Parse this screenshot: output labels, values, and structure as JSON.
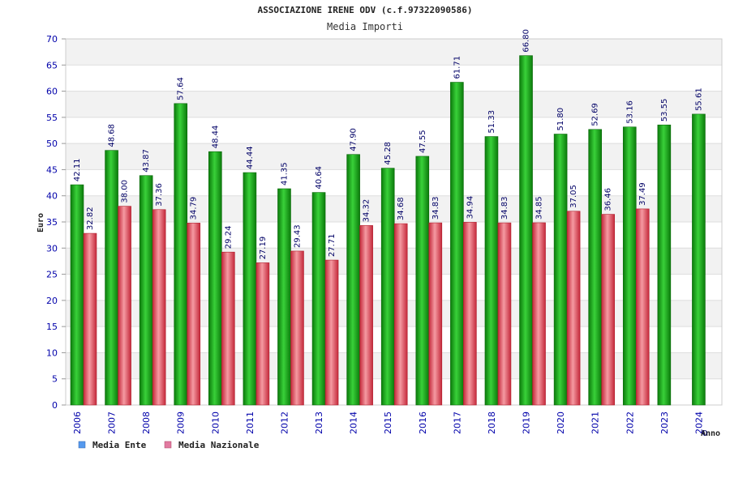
{
  "chart_data": {
    "type": "bar",
    "title": "ASSOCIAZIONE IRENE ODV (c.f.97322090586)",
    "subtitle": "Media Importi",
    "ylabel": "Euro",
    "xlabel": "Anno",
    "ylim": [
      0,
      70
    ],
    "yticks": [
      0,
      5,
      10,
      15,
      20,
      25,
      30,
      35,
      40,
      45,
      50,
      55,
      60,
      65,
      70
    ],
    "grid": true,
    "legend_position": "bottom-left",
    "categories": [
      "2006",
      "2007",
      "2008",
      "2009",
      "2010",
      "2011",
      "2012",
      "2013",
      "2014",
      "2015",
      "2016",
      "2017",
      "2018",
      "2019",
      "2020",
      "2021",
      "2022",
      "2023",
      "2024"
    ],
    "series": [
      {
        "name": "Media Ente",
        "color": "#22aa22",
        "legend_color": "#5599ee",
        "values": [
          42.11,
          48.68,
          43.87,
          57.64,
          48.44,
          44.44,
          41.35,
          40.64,
          47.9,
          45.28,
          47.55,
          61.71,
          51.33,
          66.8,
          51.8,
          52.69,
          53.16,
          53.55,
          55.61
        ],
        "labels": [
          "42.11",
          "48.68",
          "43.87",
          "57.64",
          "48.44",
          "44.44",
          "41.35",
          "40.64",
          "47.90",
          "45.28",
          "47.55",
          "61.71",
          "51.33",
          "66.80",
          "51.80",
          "52.69",
          "53.16",
          "53.55",
          "55.61"
        ]
      },
      {
        "name": "Media Nazionale",
        "color": "#e8505a",
        "legend_color": "#e27aa0",
        "values": [
          32.82,
          38.0,
          37.36,
          34.79,
          29.24,
          27.19,
          29.43,
          27.71,
          34.32,
          34.68,
          34.83,
          34.94,
          34.83,
          34.85,
          37.05,
          36.46,
          37.49,
          null,
          null
        ],
        "labels": [
          "32.82",
          "38.00",
          "37.36",
          "34.79",
          "29.24",
          "27.19",
          "29.43",
          "27.71",
          "34.32",
          "34.68",
          "34.83",
          "34.94",
          "34.83",
          "34.85",
          "37.05",
          "36.46",
          "37.49",
          "",
          ""
        ]
      }
    ],
    "extra_labels": [
      "0"
    ]
  }
}
